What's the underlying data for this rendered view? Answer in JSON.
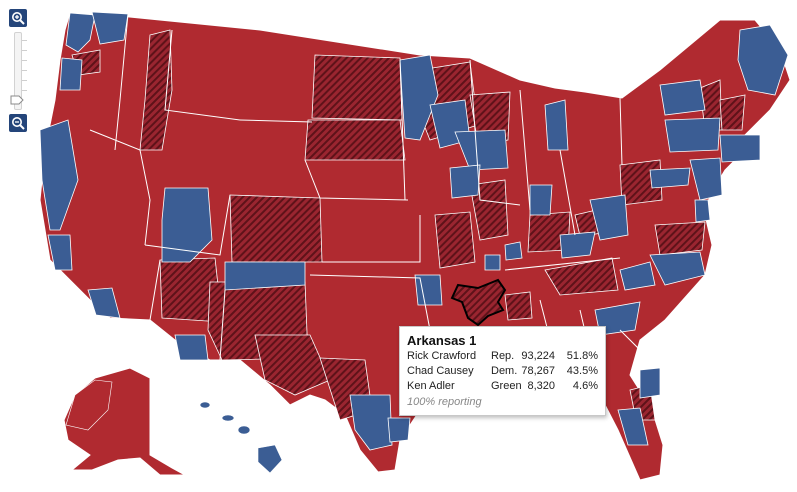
{
  "colors": {
    "republican": "#b02a30",
    "republican_hatched": "#7a1c24",
    "democrat": "#3b5d94",
    "border": "#ffffff",
    "highlight_outline": "#000000",
    "zoom_button": "#24457a"
  },
  "controls": {
    "zoom_in_icon": "zoom-in-icon",
    "zoom_out_icon": "zoom-out-icon",
    "zoom_level": 0.1
  },
  "tooltip": {
    "title": "Arkansas 1",
    "rows": [
      {
        "name": "Rick Crawford",
        "party": "Rep.",
        "votes": "93,224",
        "pct": "51.8%"
      },
      {
        "name": "Chad Causey",
        "party": "Dem.",
        "votes": "78,267",
        "pct": "43.5%"
      },
      {
        "name": "Ken Adler",
        "party": "Green",
        "votes": "8,320",
        "pct": "4.6%"
      }
    ],
    "reporting": "100% reporting"
  }
}
